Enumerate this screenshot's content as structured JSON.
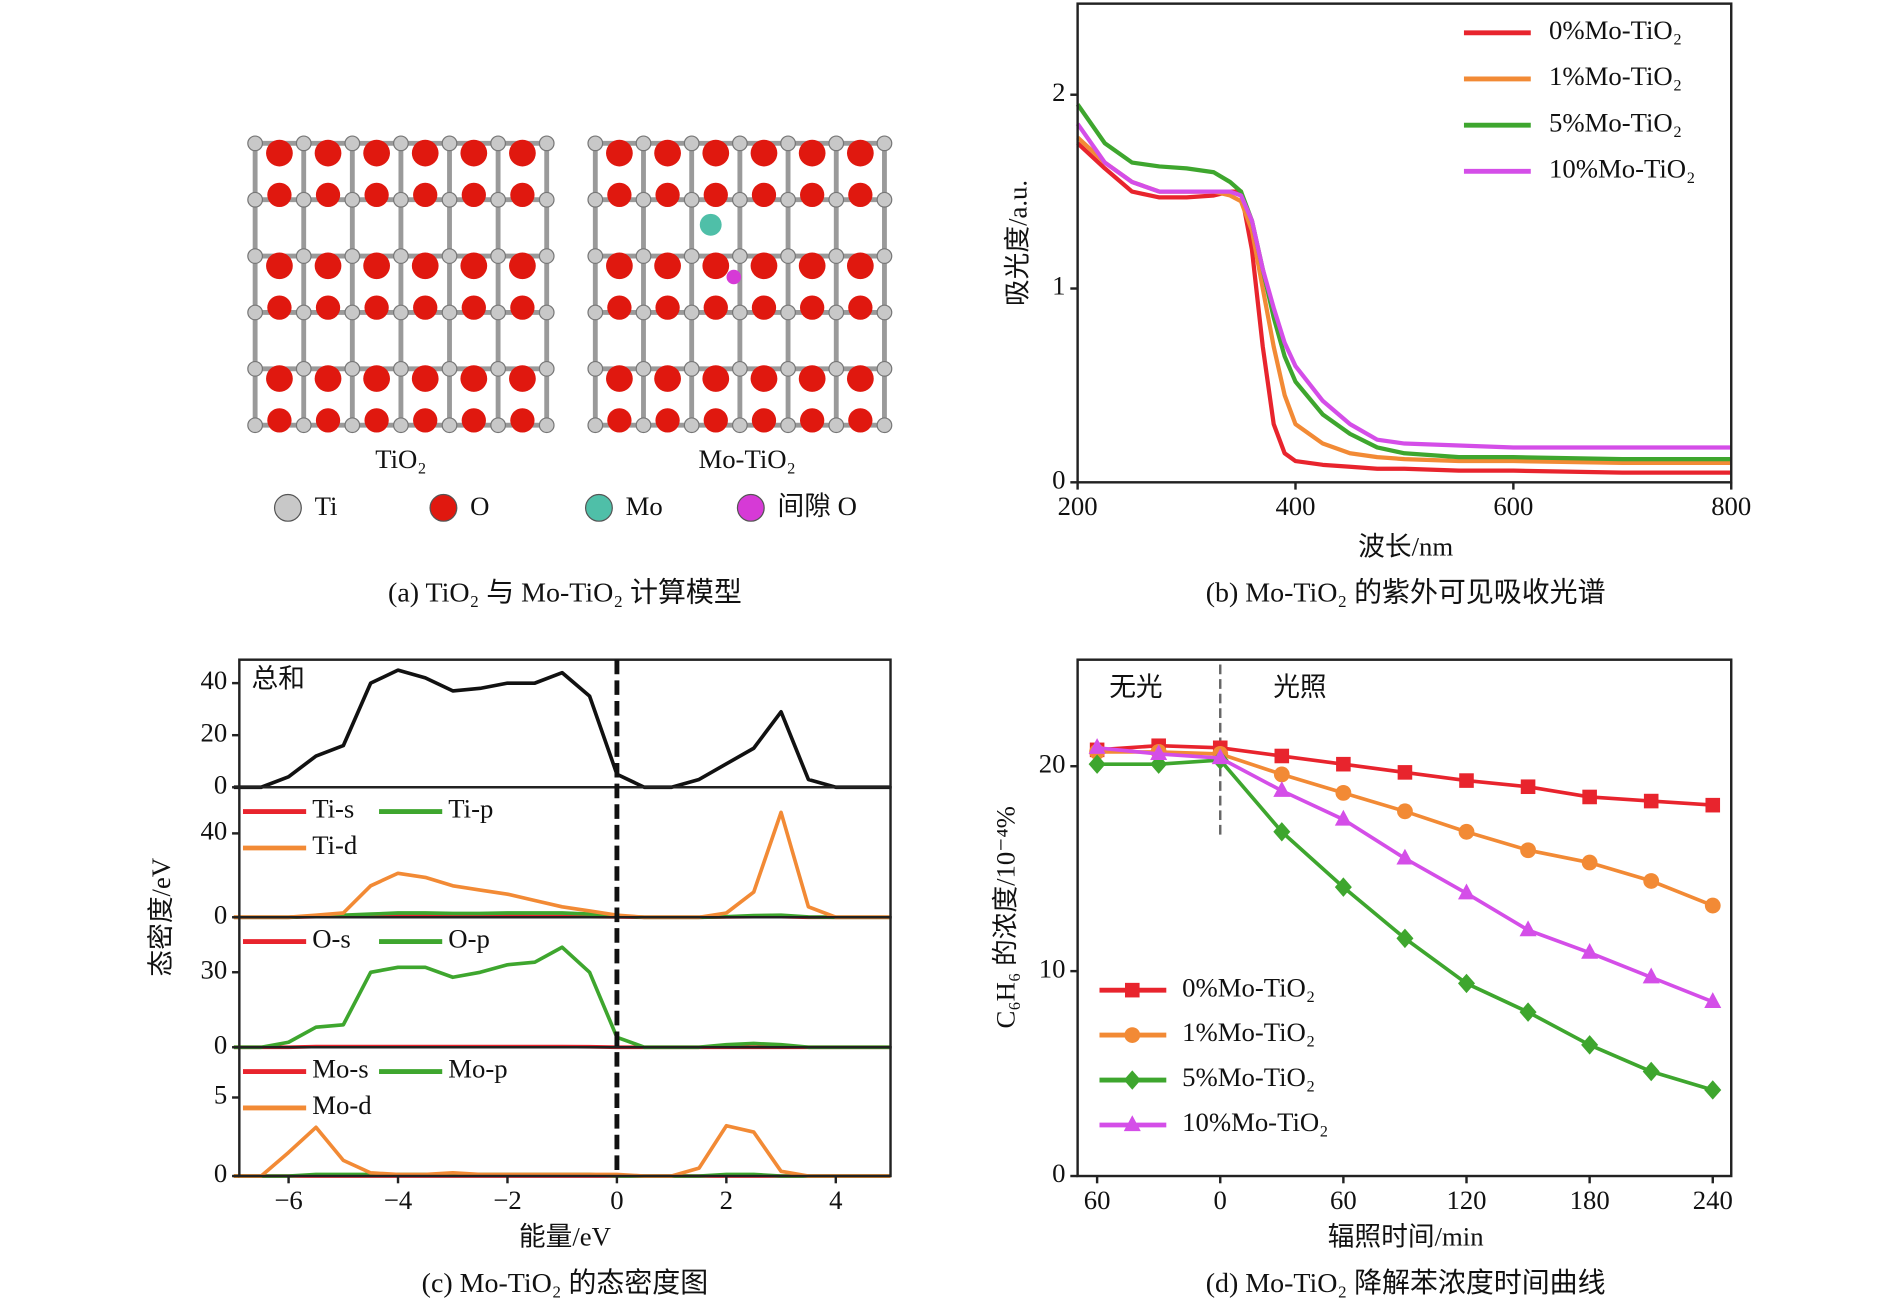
{
  "model": {
    "labels": [
      "TiO₂",
      "Mo-TiO₂"
    ],
    "legend": [
      "Ti",
      "O",
      "Mo",
      "间隙 O"
    ],
    "legend_colors": [
      "#c8c8c8",
      "#e0180f",
      "#4fbfa8",
      "#d63ad6"
    ],
    "caption": "(a) TiO₂ 与 Mo-TiO₂ 计算模型"
  },
  "chart_data": [
    {
      "type": "line",
      "caption": "(b) Mo-TiO₂ 的紫外可见吸收光谱",
      "xlabel": "波长/nm",
      "ylabel": "吸光度/a.u.",
      "x": [
        200,
        225,
        250,
        275,
        300,
        325,
        340,
        350,
        360,
        370,
        380,
        390,
        400,
        425,
        450,
        475,
        500,
        550,
        600,
        700,
        800
      ],
      "xlim": [
        200,
        800
      ],
      "xticks": [
        200,
        400,
        600,
        800
      ],
      "ylim": [
        0,
        2.47
      ],
      "yticks": [
        0,
        1,
        2
      ],
      "legend": "upper right",
      "series": [
        {
          "name": "0%Mo-TiO₂",
          "color": "#e8242d",
          "values": [
            1.75,
            1.62,
            1.5,
            1.47,
            1.47,
            1.48,
            1.5,
            1.5,
            1.2,
            0.7,
            0.3,
            0.15,
            0.11,
            0.09,
            0.08,
            0.07,
            0.07,
            0.06,
            0.06,
            0.05,
            0.05
          ]
        },
        {
          "name": "1%Mo-TiO₂",
          "color": "#f28a35",
          "values": [
            1.78,
            1.65,
            1.55,
            1.5,
            1.5,
            1.5,
            1.48,
            1.45,
            1.3,
            1.0,
            0.7,
            0.45,
            0.3,
            0.2,
            0.15,
            0.13,
            0.12,
            0.11,
            0.11,
            0.1,
            0.1
          ]
        },
        {
          "name": "5%Mo-TiO₂",
          "color": "#3ea62e",
          "values": [
            1.95,
            1.75,
            1.65,
            1.63,
            1.62,
            1.6,
            1.55,
            1.5,
            1.35,
            1.1,
            0.85,
            0.65,
            0.52,
            0.35,
            0.25,
            0.18,
            0.15,
            0.13,
            0.13,
            0.12,
            0.12
          ]
        },
        {
          "name": "10%Mo-TiO₂",
          "color": "#d44ee8",
          "values": [
            1.85,
            1.65,
            1.55,
            1.5,
            1.5,
            1.5,
            1.5,
            1.48,
            1.35,
            1.1,
            0.9,
            0.72,
            0.6,
            0.42,
            0.3,
            0.22,
            0.2,
            0.19,
            0.18,
            0.18,
            0.18
          ]
        }
      ]
    },
    {
      "type": "stacked-line",
      "caption": "(c) Mo-TiO₂ 的态密度图",
      "xlabel": "能量/eV",
      "ylabel": "态密度/eV",
      "x": [
        -7,
        -6.5,
        -6,
        -5.5,
        -5,
        -4.5,
        -4,
        -3.5,
        -3,
        -2.5,
        -2,
        -1.5,
        -1,
        -0.5,
        0,
        0.5,
        1,
        1.5,
        2,
        2.5,
        3,
        3.5,
        4,
        4.5,
        5
      ],
      "xlim": [
        -6.9,
        5
      ],
      "xticks": [
        {
          "value": -6,
          "label": "−6"
        },
        {
          "value": -4,
          "label": "−4"
        },
        {
          "value": -2,
          "label": "−2"
        },
        0,
        2,
        4
      ],
      "reference_line_x": 0,
      "subplots": [
        {
          "annotation": "总和",
          "ylim": [
            0,
            49
          ],
          "yticks": [
            0,
            20,
            40
          ],
          "series": [
            {
              "color": "#111111",
              "values": [
                0,
                0,
                4,
                12,
                16,
                40,
                45,
                42,
                37,
                38,
                40,
                40,
                44,
                35,
                5,
                0,
                0,
                3,
                9,
                15,
                29,
                3,
                0,
                0,
                0
              ]
            }
          ]
        },
        {
          "ylim": [
            0,
            62
          ],
          "yticks": [
            0,
            40
          ],
          "series": [
            {
              "name": "Ti-s",
              "color": "#e8242d",
              "values": [
                0,
                0,
                0,
                0.3,
                0.4,
                0.5,
                0.5,
                0.5,
                0.5,
                0.5,
                0.5,
                0.4,
                0.4,
                0.3,
                0.2,
                0,
                0,
                0,
                0.2,
                0.3,
                0.3,
                0,
                0,
                0,
                0
              ]
            },
            {
              "name": "Ti-p",
              "color": "#3ea62e",
              "values": [
                0,
                0,
                0,
                0.5,
                1,
                1.5,
                2,
                2,
                1.8,
                1.8,
                2,
                2,
                2,
                1.5,
                0.5,
                0,
                0,
                0,
                0.3,
                0.8,
                1,
                0.2,
                0,
                0,
                0
              ]
            },
            {
              "name": "Ti-d",
              "color": "#f28a35",
              "values": [
                0,
                0,
                0,
                1,
                2,
                15,
                21,
                19,
                15,
                13,
                11,
                8,
                5,
                3,
                1,
                0,
                0,
                0,
                2,
                12,
                50,
                5,
                0,
                0,
                0
              ]
            }
          ]
        },
        {
          "ylim": [
            0,
            52
          ],
          "yticks": [
            0,
            30
          ],
          "series": [
            {
              "name": "O-s",
              "color": "#e8242d",
              "values": [
                0,
                0,
                0,
                0.3,
                0.3,
                0.3,
                0.3,
                0.3,
                0.3,
                0.3,
                0.3,
                0.3,
                0.3,
                0.2,
                0,
                0,
                0,
                0,
                0,
                0,
                0,
                0,
                0,
                0,
                0
              ]
            },
            {
              "name": "O-p",
              "color": "#3ea62e",
              "values": [
                0,
                0,
                2,
                8,
                9,
                30,
                32,
                32,
                28,
                30,
                33,
                34,
                40,
                30,
                4,
                0,
                0,
                0,
                1,
                1.5,
                1,
                0,
                0,
                0,
                0
              ]
            }
          ]
        },
        {
          "ylim": [
            0,
            8.2
          ],
          "yticks": [
            0,
            5
          ],
          "series": [
            {
              "name": "Mo-s",
              "color": "#e8242d",
              "values": [
                0,
                0,
                0,
                0,
                0,
                0,
                0,
                0,
                0,
                0,
                0,
                0,
                0,
                0,
                0,
                0,
                0,
                0,
                0,
                0,
                0,
                0,
                0,
                0,
                0
              ]
            },
            {
              "name": "Mo-p",
              "color": "#3ea62e",
              "values": [
                0,
                0,
                0,
                0.1,
                0.1,
                0.1,
                0.1,
                0.1,
                0.1,
                0.1,
                0.1,
                0.1,
                0.1,
                0.1,
                0,
                0,
                0,
                0,
                0.1,
                0.1,
                0,
                0,
                0,
                0,
                0
              ]
            },
            {
              "name": "Mo-d",
              "color": "#f28a35",
              "values": [
                0,
                0,
                1.5,
                3.1,
                1,
                0.2,
                0.1,
                0.1,
                0.2,
                0.1,
                0.1,
                0.1,
                0.1,
                0.1,
                0.1,
                0,
                0,
                0.5,
                3.2,
                2.8,
                0.3,
                0,
                0,
                0,
                0
              ]
            }
          ]
        }
      ]
    },
    {
      "type": "line-marker",
      "caption": "(d) Mo-TiO₂ 降解苯浓度时间曲线",
      "xlabel": "辐照时间/min",
      "ylabel": "C₆H₆ 的浓度/10⁻⁴%",
      "annotations": [
        "无光",
        "光照"
      ],
      "reference_line_x": 0,
      "x": [
        -60,
        -30,
        0,
        30,
        60,
        90,
        120,
        150,
        180,
        210,
        240
      ],
      "xlim": [
        -69.5,
        249
      ],
      "xticks": [
        {
          "value": -60,
          "label": "60"
        },
        0,
        60,
        120,
        180,
        240
      ],
      "ylim": [
        0,
        25.2
      ],
      "yticks": [
        0,
        10,
        20
      ],
      "legend": "lower left",
      "series": [
        {
          "name": "0%Mo-TiO₂",
          "color": "#e8242d",
          "marker": "square",
          "values": [
            20.8,
            21,
            20.9,
            20.5,
            20.1,
            19.7,
            19.3,
            19.0,
            18.5,
            18.3,
            18.1
          ]
        },
        {
          "name": "1%Mo-TiO₂",
          "color": "#f28a35",
          "marker": "circle",
          "values": [
            20.7,
            20.7,
            20.6,
            19.6,
            18.7,
            17.8,
            16.8,
            15.9,
            15.3,
            14.4,
            13.2
          ]
        },
        {
          "name": "5%Mo-TiO₂",
          "color": "#3ea62e",
          "marker": "diamond",
          "values": [
            20.1,
            20.1,
            20.3,
            16.8,
            14.1,
            11.6,
            9.4,
            8.0,
            6.4,
            5.1,
            4.2
          ]
        },
        {
          "name": "10%Mo-TiO₂",
          "color": "#d44ee8",
          "marker": "triangle",
          "values": [
            20.9,
            20.6,
            20.4,
            18.8,
            17.4,
            15.5,
            13.8,
            12.0,
            10.9,
            9.7,
            8.5
          ]
        }
      ]
    }
  ]
}
